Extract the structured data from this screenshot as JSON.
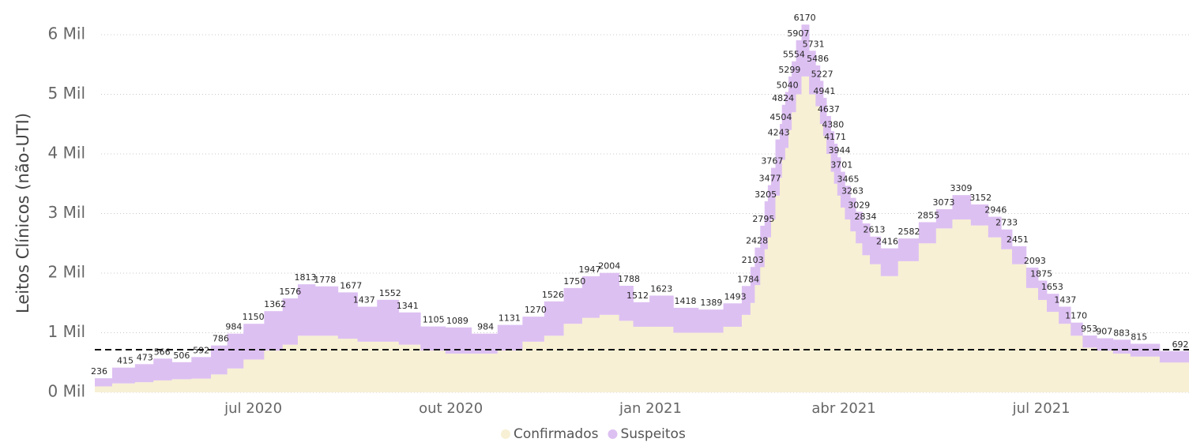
{
  "chart_data": {
    "type": "stacked_bar",
    "y_axis_label": "Leitos Clínicos (não-UTI)",
    "x": [
      2,
      14,
      23,
      31,
      40,
      49,
      58,
      64,
      73,
      83,
      90,
      97,
      106,
      118,
      124,
      136,
      144,
      156,
      167,
      180,
      191,
      203,
      211,
      221,
      228,
      237,
      246,
      250,
      261,
      272,
      284,
      295,
      301,
      303,
      305,
      308,
      309,
      311,
      312,
      315,
      316,
      317,
      319,
      320,
      322,
      324,
      327,
      331,
      333,
      335,
      336,
      338,
      340,
      341,
      343,
      344,
      347,
      349,
      352,
      355,
      359,
      365,
      375,
      384,
      391,
      399,
      408,
      415,
      420,
      425,
      433,
      436,
      441,
      447,
      452,
      458,
      465,
      473,
      481,
      500
    ],
    "xlim": [
      0,
      504
    ],
    "xticks": [
      {
        "value": 73,
        "label": "jul 2020"
      },
      {
        "value": 164,
        "label": "out 2020"
      },
      {
        "value": 256,
        "label": "jan 2021"
      },
      {
        "value": 345,
        "label": "abr 2021"
      },
      {
        "value": 436,
        "label": "jul 2021"
      }
    ],
    "ylim": [
      0,
      6400
    ],
    "yticks": [
      {
        "value": 0,
        "label": "0 Mil"
      },
      {
        "value": 1000,
        "label": "1 Mil"
      },
      {
        "value": 2000,
        "label": "2 Mil"
      },
      {
        "value": 3000,
        "label": "3 Mil"
      },
      {
        "value": 4000,
        "label": "4 Mil"
      },
      {
        "value": 5000,
        "label": "5 Mil"
      },
      {
        "value": 6000,
        "label": "6 Mil"
      }
    ],
    "grid": true,
    "legend": "bottom",
    "reference_line": 715,
    "series": [
      {
        "name": "Confirmados",
        "color": "#f7f0d4",
        "values": [
          100,
          150,
          170,
          200,
          220,
          230,
          300,
          400,
          550,
          700,
          800,
          950,
          950,
          900,
          850,
          850,
          800,
          700,
          650,
          650,
          700,
          850,
          950,
          1150,
          1250,
          1300,
          1200,
          1100,
          1100,
          1000,
          1000,
          1100,
          1300,
          1500,
          1800,
          2100,
          2400,
          2600,
          2900,
          3300,
          3600,
          3900,
          4100,
          4400,
          4700,
          5000,
          5300,
          5000,
          4800,
          4500,
          4300,
          4000,
          3700,
          3500,
          3300,
          3100,
          2900,
          2700,
          2500,
          2300,
          2150,
          1950,
          2200,
          2500,
          2750,
          2900,
          2800,
          2600,
          2400,
          2150,
          1750,
          1550,
          1350,
          1150,
          950,
          750,
          700,
          650,
          600,
          500
        ]
      },
      {
        "name": "Suspeitos",
        "color": "#ddc0f2",
        "values": [
          136,
          265,
          303,
          366,
          286,
          362,
          486,
          584,
          600,
          662,
          776,
          863,
          828,
          777,
          587,
          702,
          541,
          405,
          439,
          334,
          431,
          420,
          576,
          600,
          697,
          704,
          588,
          412,
          523,
          418,
          389,
          393,
          484,
          603,
          628,
          695,
          805,
          877,
          867,
          943,
          904,
          924,
          940,
          899,
          854,
          907,
          870,
          731,
          686,
          727,
          641,
          637,
          680,
          671,
          644,
          601,
          565,
          563,
          529,
          534,
          463,
          466,
          382,
          355,
          323,
          409,
          352,
          346,
          333,
          301,
          343,
          325,
          303,
          287,
          220,
          203,
          207,
          233,
          215,
          192
        ]
      }
    ],
    "data_labels": [
      236,
      415,
      473,
      566,
      506,
      592,
      786,
      984,
      1150,
      1362,
      1576,
      1813,
      1778,
      1677,
      1437,
      1552,
      1341,
      1105,
      1089,
      984,
      1131,
      1270,
      1526,
      1750,
      1947,
      2004,
      1788,
      1512,
      1623,
      1418,
      1389,
      1493,
      1784,
      2103,
      2428,
      2795,
      3205,
      3477,
      3767,
      4243,
      4504,
      4824,
      5040,
      5299,
      5554,
      5907,
      6170,
      5731,
      5486,
      5227,
      4941,
      4637,
      4380,
      4171,
      3944,
      3701,
      3465,
      3263,
      3029,
      2834,
      2613,
      2416,
      2582,
      2855,
      3073,
      3309,
      3152,
      2946,
      2733,
      2451,
      2093,
      1875,
      1653,
      1437,
      1170,
      953,
      907,
      883,
      815,
      692
    ]
  }
}
